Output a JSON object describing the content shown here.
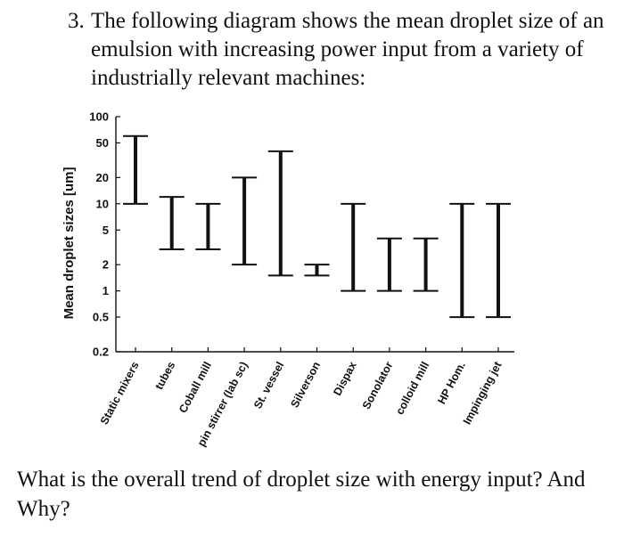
{
  "question": {
    "number": "3.",
    "text": "The following diagram shows the mean droplet size of an emulsion with increasing power input from a variety of industrially relevant machines:",
    "followup": "What is the overall trend of droplet size with energy input? And Why?"
  },
  "chart_data": {
    "type": "range-bar",
    "ylabel": "Mean droplet sizes [um]",
    "yscale": "log",
    "ylim": [
      0.2,
      100
    ],
    "yticks": [
      {
        "value": 100,
        "label": "100"
      },
      {
        "value": 50,
        "label": "50"
      },
      {
        "value": 20,
        "label": "20"
      },
      {
        "value": 10,
        "label": "10"
      },
      {
        "value": 5,
        "label": "5"
      },
      {
        "value": 2,
        "label": "2"
      },
      {
        "value": 1,
        "label": "1"
      },
      {
        "value": 0.5,
        "label": "0.5"
      },
      {
        "value": 0.2,
        "label": "0.2"
      }
    ],
    "categories": [
      "Static mixers",
      "tubes",
      "Coball mill",
      "pin stirrer (lab sc)",
      "St. vessel",
      "Silverson",
      "Dispax",
      "Sonolator",
      "colloid mill",
      "HP Hom.",
      "Impinging jet"
    ],
    "ranges": [
      {
        "min": 10,
        "max": 60
      },
      {
        "min": 3,
        "max": 12
      },
      {
        "min": 3,
        "max": 10
      },
      {
        "min": 2,
        "max": 20
      },
      {
        "min": 1.5,
        "max": 40
      },
      {
        "min": 1.5,
        "max": 2
      },
      {
        "min": 1,
        "max": 10
      },
      {
        "min": 1,
        "max": 4
      },
      {
        "min": 1,
        "max": 4
      },
      {
        "min": 0.5,
        "max": 10
      },
      {
        "min": 0.5,
        "max": 10
      }
    ],
    "grid": false,
    "color": "#111111"
  }
}
